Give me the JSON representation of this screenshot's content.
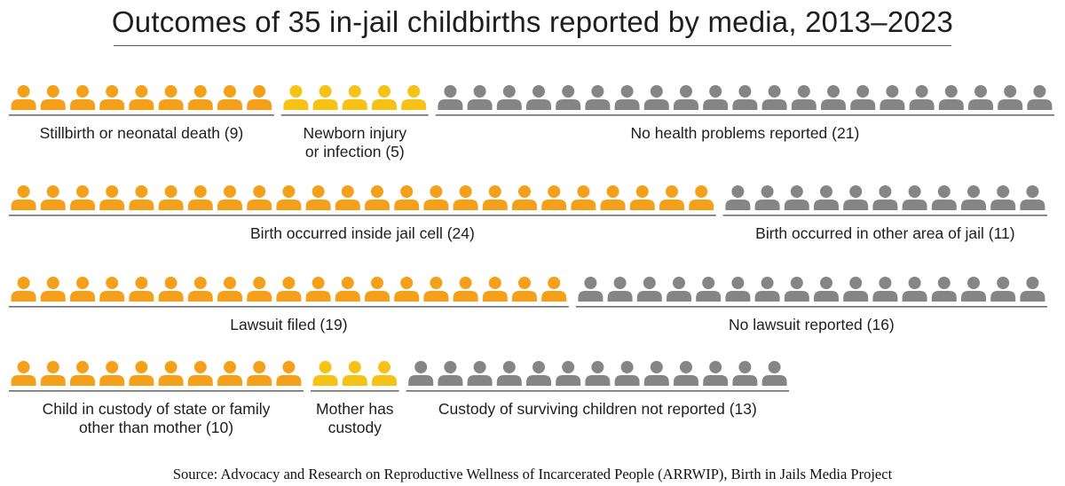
{
  "title": "Outcomes of 35 in-jail childbirths reported by media, 2013–2023",
  "source": "Source: Advocacy and Research on Reproductive Wellness of Incarcerated People (ARRWIP), Birth in Jails Media Project",
  "colors": {
    "orange": "#F5A01A",
    "yellow": "#F6C216",
    "gray": "#858585",
    "rule": "#6e6e6e"
  },
  "chart_data": {
    "type": "pictogram",
    "unit": "one icon = one childbirth",
    "total": 35,
    "rows": [
      {
        "segments": [
          {
            "label": [
              "Stillbirth or neonatal death (9)"
            ],
            "count": 9,
            "color": "orange"
          },
          {
            "label": [
              "Newborn injury",
              "or infection (5)"
            ],
            "count": 5,
            "color": "yellow"
          },
          {
            "label": [
              "No health problems reported (21)"
            ],
            "count": 21,
            "color": "gray"
          }
        ]
      },
      {
        "segments": [
          {
            "label": [
              "Birth occurred inside jail cell (24)"
            ],
            "count": 24,
            "color": "orange"
          },
          {
            "label": [
              "Birth occurred in other area of jail (11)"
            ],
            "count": 11,
            "color": "gray"
          }
        ]
      },
      {
        "segments": [
          {
            "label": [
              "Lawsuit filed (19)"
            ],
            "count": 19,
            "color": "orange"
          },
          {
            "label": [
              "No lawsuit reported (16)"
            ],
            "count": 16,
            "color": "gray"
          }
        ]
      },
      {
        "segments": [
          {
            "label": [
              "Child in custody of state or family",
              "other than mother (10)"
            ],
            "count": 10,
            "color": "orange"
          },
          {
            "label": [
              "Mother has",
              "custody"
            ],
            "count": 3,
            "color": "yellow"
          },
          {
            "label": [
              "Custody of surviving children not reported (13)"
            ],
            "count": 13,
            "color": "gray"
          }
        ]
      }
    ]
  }
}
